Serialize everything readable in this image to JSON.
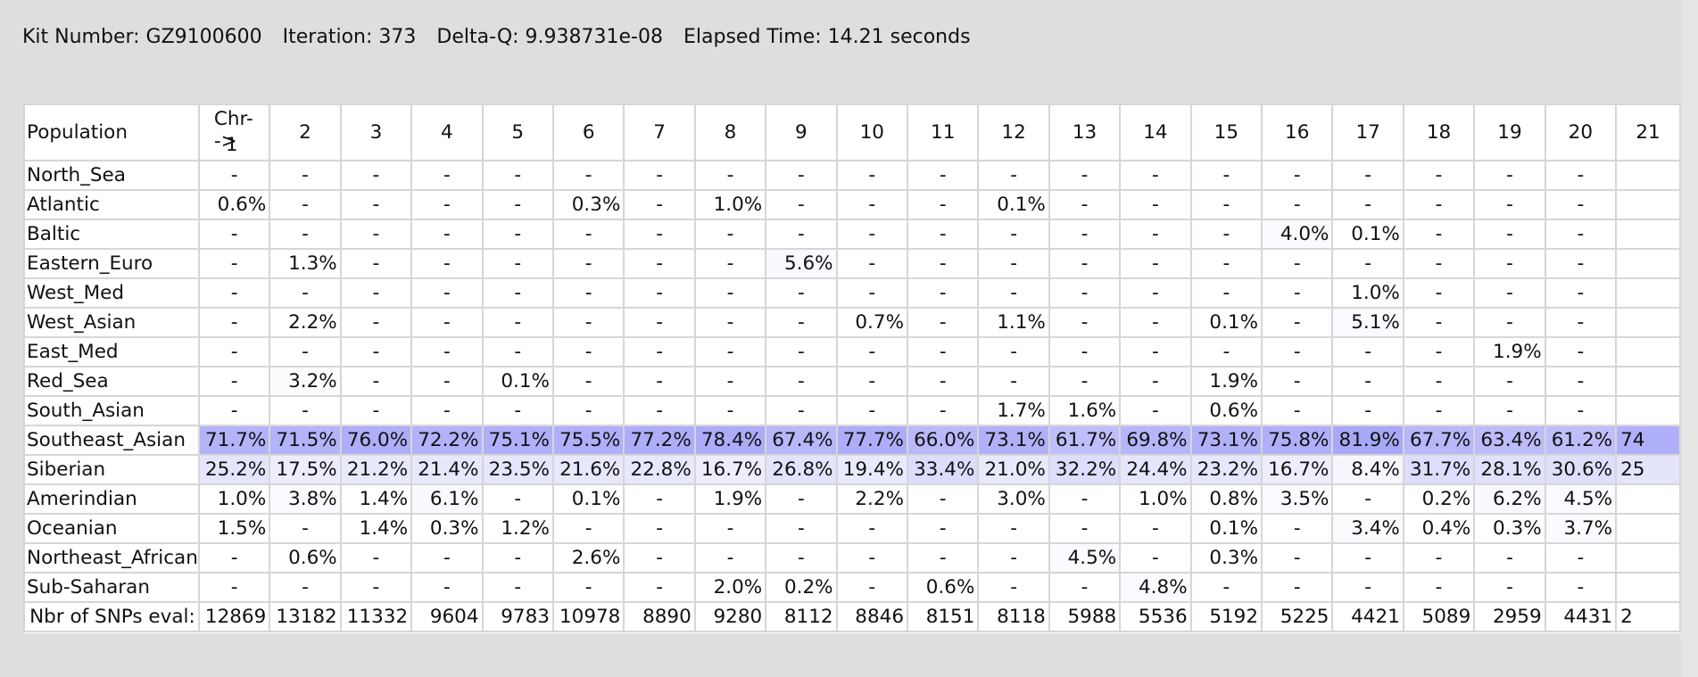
{
  "status": {
    "kit": "Kit Number: GZ9100600",
    "iteration": "Iteration: 373",
    "delta": "Delta-Q: 9.938731e-08",
    "elapsed": "Elapsed Time: 14.21 seconds"
  },
  "table": {
    "corner": "Population",
    "chr_header": "Chr-->",
    "chromosomes": [
      "1",
      "2",
      "3",
      "4",
      "5",
      "6",
      "7",
      "8",
      "9",
      "10",
      "11",
      "12",
      "13",
      "14",
      "15",
      "16",
      "17",
      "18",
      "19",
      "20",
      "21"
    ],
    "footer_label": "Nbr of SNPs eval:",
    "snp_counts": [
      "12869",
      "13182",
      "11332",
      "9604",
      "9783",
      "10978",
      "8890",
      "9280",
      "8112",
      "8846",
      "8151",
      "8118",
      "5988",
      "5536",
      "5192",
      "5225",
      "4421",
      "5089",
      "2959",
      "4431",
      "2"
    ],
    "rows": [
      {
        "name": "North_Sea",
        "values": [
          "-",
          "-",
          "-",
          "-",
          "-",
          "-",
          "-",
          "-",
          "-",
          "-",
          "-",
          "-",
          "-",
          "-",
          "-",
          "-",
          "-",
          "-",
          "-",
          "-",
          ""
        ]
      },
      {
        "name": "Atlantic",
        "values": [
          "0.6%",
          "-",
          "-",
          "-",
          "-",
          "0.3%",
          "-",
          "1.0%",
          "-",
          "-",
          "-",
          "0.1%",
          "-",
          "-",
          "-",
          "-",
          "-",
          "-",
          "-",
          "-",
          ""
        ]
      },
      {
        "name": "Baltic",
        "values": [
          "-",
          "-",
          "-",
          "-",
          "-",
          "-",
          "-",
          "-",
          "-",
          "-",
          "-",
          "-",
          "-",
          "-",
          "-",
          "4.0%",
          "0.1%",
          "-",
          "-",
          "-",
          ""
        ]
      },
      {
        "name": "Eastern_Euro",
        "values": [
          "-",
          "1.3%",
          "-",
          "-",
          "-",
          "-",
          "-",
          "-",
          "5.6%",
          "-",
          "-",
          "-",
          "-",
          "-",
          "-",
          "-",
          "-",
          "-",
          "-",
          "-",
          ""
        ]
      },
      {
        "name": "West_Med",
        "values": [
          "-",
          "-",
          "-",
          "-",
          "-",
          "-",
          "-",
          "-",
          "-",
          "-",
          "-",
          "-",
          "-",
          "-",
          "-",
          "-",
          "1.0%",
          "-",
          "-",
          "-",
          ""
        ]
      },
      {
        "name": "West_Asian",
        "values": [
          "-",
          "2.2%",
          "-",
          "-",
          "-",
          "-",
          "-",
          "-",
          "-",
          "0.7%",
          "-",
          "1.1%",
          "-",
          "-",
          "0.1%",
          "-",
          "5.1%",
          "-",
          "-",
          "-",
          ""
        ]
      },
      {
        "name": "East_Med",
        "values": [
          "-",
          "-",
          "-",
          "-",
          "-",
          "-",
          "-",
          "-",
          "-",
          "-",
          "-",
          "-",
          "-",
          "-",
          "-",
          "-",
          "-",
          "-",
          "1.9%",
          "-",
          ""
        ]
      },
      {
        "name": "Red_Sea",
        "values": [
          "-",
          "3.2%",
          "-",
          "-",
          "0.1%",
          "-",
          "-",
          "-",
          "-",
          "-",
          "-",
          "-",
          "-",
          "-",
          "1.9%",
          "-",
          "-",
          "-",
          "-",
          "-",
          ""
        ]
      },
      {
        "name": "South_Asian",
        "values": [
          "-",
          "-",
          "-",
          "-",
          "-",
          "-",
          "-",
          "-",
          "-",
          "-",
          "-",
          "1.7%",
          "1.6%",
          "-",
          "0.6%",
          "-",
          "-",
          "-",
          "-",
          "-",
          ""
        ]
      },
      {
        "name": "Southeast_Asian",
        "values": [
          "71.7%",
          "71.5%",
          "76.0%",
          "72.2%",
          "75.1%",
          "75.5%",
          "77.2%",
          "78.4%",
          "67.4%",
          "77.7%",
          "66.0%",
          "73.1%",
          "61.7%",
          "69.8%",
          "73.1%",
          "75.8%",
          "81.9%",
          "67.7%",
          "63.4%",
          "61.2%",
          "74"
        ]
      },
      {
        "name": "Siberian",
        "values": [
          "25.2%",
          "17.5%",
          "21.2%",
          "21.4%",
          "23.5%",
          "21.6%",
          "22.8%",
          "16.7%",
          "26.8%",
          "19.4%",
          "33.4%",
          "21.0%",
          "32.2%",
          "24.4%",
          "23.2%",
          "16.7%",
          "8.4%",
          "31.7%",
          "28.1%",
          "30.6%",
          "25"
        ]
      },
      {
        "name": "Amerindian",
        "values": [
          "1.0%",
          "3.8%",
          "1.4%",
          "6.1%",
          "-",
          "0.1%",
          "-",
          "1.9%",
          "-",
          "2.2%",
          "-",
          "3.0%",
          "-",
          "1.0%",
          "0.8%",
          "3.5%",
          "-",
          "0.2%",
          "6.2%",
          "4.5%",
          ""
        ]
      },
      {
        "name": "Oceanian",
        "values": [
          "1.5%",
          "-",
          "1.4%",
          "0.3%",
          "1.2%",
          "-",
          "-",
          "-",
          "-",
          "-",
          "-",
          "-",
          "-",
          "-",
          "0.1%",
          "-",
          "3.4%",
          "0.4%",
          "0.3%",
          "3.7%",
          ""
        ]
      },
      {
        "name": "Northeast_African",
        "values": [
          "-",
          "0.6%",
          "-",
          "-",
          "-",
          "2.6%",
          "-",
          "-",
          "-",
          "-",
          "-",
          "-",
          "4.5%",
          "-",
          "0.3%",
          "-",
          "-",
          "-",
          "-",
          "-",
          ""
        ]
      },
      {
        "name": "Sub-Saharan",
        "values": [
          "-",
          "-",
          "-",
          "-",
          "-",
          "-",
          "-",
          "2.0%",
          "0.2%",
          "-",
          "0.6%",
          "-",
          "-",
          "4.8%",
          "-",
          "-",
          "-",
          "-",
          "-",
          "-",
          ""
        ]
      }
    ]
  }
}
